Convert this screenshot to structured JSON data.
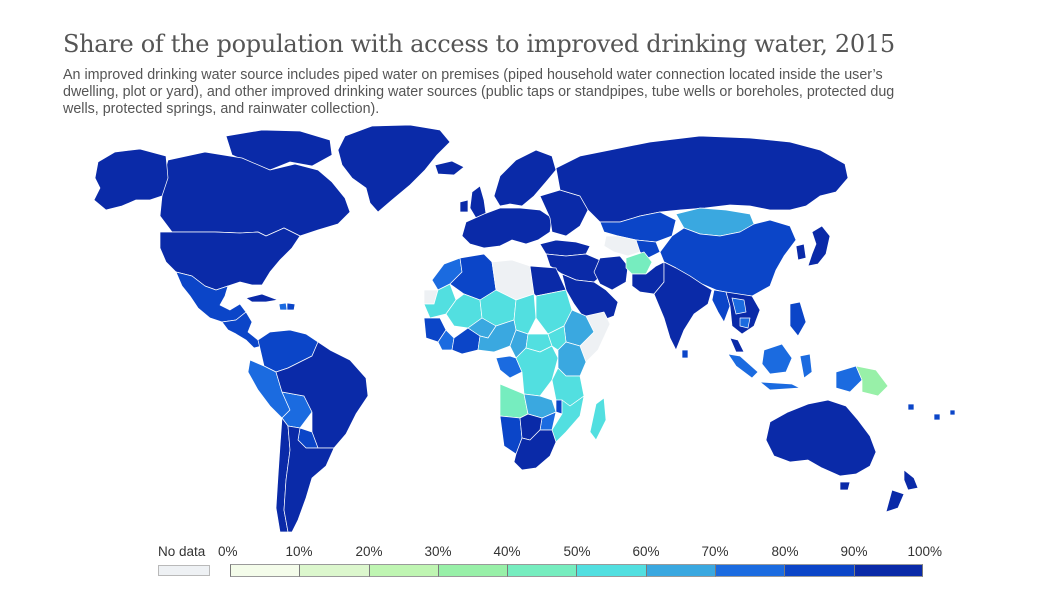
{
  "title": "Share of the population with access to improved drinking water, 2015",
  "subtitle": "An improved drinking water source includes piped water on premises (piped household water connection located inside the user’s dwelling, plot or yard), and other improved drinking water sources (public taps or standpipes, tube wells or boreholes, protected dug wells, protected springs, and rainwater collection).",
  "legend": {
    "no_data_label": "No data",
    "no_data_color": "#eef1f4",
    "ticks": [
      "0%",
      "10%",
      "20%",
      "30%",
      "40%",
      "50%",
      "60%",
      "70%",
      "80%",
      "90%",
      "100%"
    ],
    "bins": [
      {
        "from": 0,
        "to": 10,
        "color": "#f4fcea"
      },
      {
        "from": 10,
        "to": 20,
        "color": "#dcf7cd"
      },
      {
        "from": 20,
        "to": 30,
        "color": "#bff5b2"
      },
      {
        "from": 30,
        "to": 40,
        "color": "#98f0a8"
      },
      {
        "from": 40,
        "to": 50,
        "color": "#76edbf"
      },
      {
        "from": 50,
        "to": 60,
        "color": "#52dfe0"
      },
      {
        "from": 60,
        "to": 70,
        "color": "#3aa8e0"
      },
      {
        "from": 70,
        "to": 80,
        "color": "#1b6be0"
      },
      {
        "from": 80,
        "to": 90,
        "color": "#0b45c8"
      },
      {
        "from": 90,
        "to": 100,
        "color": "#0a2aa8"
      }
    ]
  },
  "colors": {
    "highest": "#0a2aa8",
    "high": "#0b45c8",
    "mid_high": "#1b6be0",
    "mid": "#3aa8e0",
    "mid_low": "#52dfe0",
    "low": "#76edbf",
    "lower": "#98f0a8",
    "no_data": "#eef1f4",
    "border": "#ffffff"
  }
}
